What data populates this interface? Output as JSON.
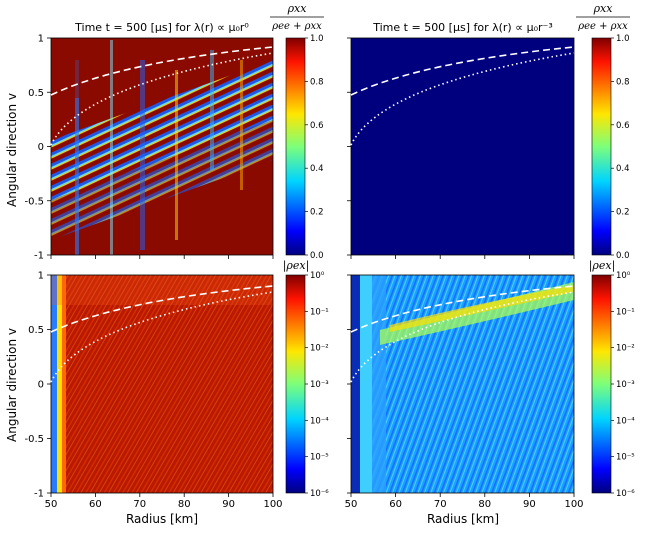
{
  "figure": {
    "ylabel": "Angular direction v",
    "xlabel": "Radius [km]"
  },
  "panels_top": [
    {
      "title": "Time t = 500 [μs] for λ(r) ∝ μ₀r⁰"
    },
    {
      "title": "Time t = 500 [μs] for λ(r) ∝ μ₀r⁻³"
    }
  ],
  "colorbars": {
    "top_label_num": "ρxx",
    "top_label_den": "ρee + ρxx",
    "bottom_label": "|ρex|",
    "top_ticks": [
      "1.0",
      "0.8",
      "0.6",
      "0.4",
      "0.2",
      "0.0"
    ],
    "bottom_ticks": [
      "10⁰",
      "10⁻¹",
      "10⁻²",
      "10⁻³",
      "10⁻⁴",
      "10⁻⁵",
      "10⁻⁶"
    ]
  },
  "chart_data": [
    {
      "type": "heatmap",
      "title": "Time t = 500 [μs] for λ(r) ∝ μ₀r⁰",
      "quantity": "ρxx/(ρee+ρxx)",
      "xlim": [
        50,
        100
      ],
      "ylim": [
        -1,
        1
      ],
      "x_ticks": [
        50,
        60,
        70,
        80,
        90,
        100
      ],
      "y_ticks": [
        -1,
        -0.5,
        0,
        0.5,
        1
      ],
      "colorbar_range": [
        0.0,
        1.0
      ],
      "overlays": [
        {
          "style": "dashed"
        },
        {
          "style": "dotted"
        }
      ]
    },
    {
      "type": "heatmap",
      "title": "Time t = 500 [μs] for λ(r) ∝ μ₀r⁻³",
      "quantity": "ρxx/(ρee+ρxx)",
      "xlim": [
        50,
        100
      ],
      "ylim": [
        -1,
        1
      ],
      "x_ticks": [
        50,
        60,
        70,
        80,
        90,
        100
      ],
      "colorbar_range": [
        0.0,
        1.0
      ],
      "overlays": [
        {
          "style": "dashed"
        },
        {
          "style": "dotted"
        }
      ]
    },
    {
      "type": "heatmap",
      "quantity": "|ρex|",
      "xlabel": "Radius [km]",
      "xlim": [
        50,
        100
      ],
      "ylim": [
        -1,
        1
      ],
      "x_ticks": [
        50,
        60,
        70,
        80,
        90,
        100
      ],
      "y_ticks": [
        -1,
        -0.5,
        0,
        0.5,
        1
      ],
      "colorbar_scale": "log",
      "colorbar_range": [
        1e-06,
        1
      ],
      "overlays": [
        {
          "style": "dashed"
        },
        {
          "style": "dotted"
        }
      ]
    },
    {
      "type": "heatmap",
      "quantity": "|ρex|",
      "xlabel": "Radius [km]",
      "xlim": [
        50,
        100
      ],
      "ylim": [
        -1,
        1
      ],
      "x_ticks": [
        50,
        60,
        70,
        80,
        90,
        100
      ],
      "colorbar_scale": "log",
      "colorbar_range": [
        1e-06,
        1
      ],
      "overlays": [
        {
          "style": "dashed"
        },
        {
          "style": "dotted"
        }
      ]
    }
  ]
}
